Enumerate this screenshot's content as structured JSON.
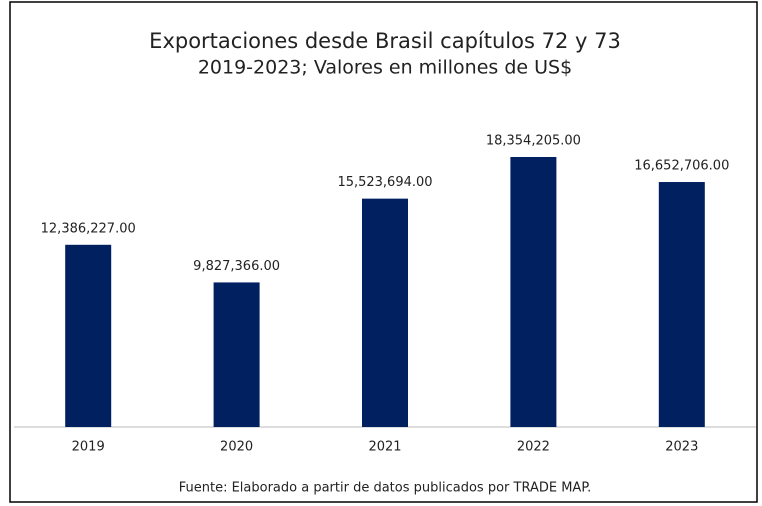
{
  "chart_data": {
    "type": "bar",
    "title": "Exportaciones desde Brasil capítulos 72 y 73",
    "subtitle": "2019-2023; Valores en millones de US$",
    "categories": [
      "2019",
      "2020",
      "2021",
      "2022",
      "2023"
    ],
    "values": [
      12386227,
      9827366,
      15523694,
      18354205,
      16652706
    ],
    "value_labels": [
      "12,386,227.00",
      "9,827,366.00",
      "15,523,694.00",
      "18,354,205.00",
      "16,652,706.00"
    ],
    "color": "#002060",
    "source": "Fuente: Elaborado a partir de datos publicados por TRADE MAP."
  }
}
